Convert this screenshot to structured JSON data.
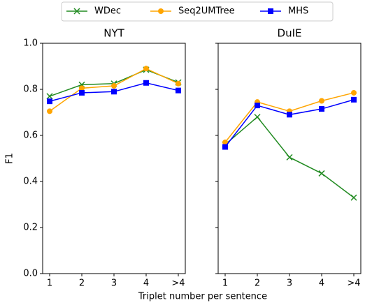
{
  "chart_data": {
    "type": "line",
    "ylabel": "F1",
    "xlabel": "Triplet number per sentence",
    "categories": [
      "1",
      "2",
      "3",
      "4",
      ">4"
    ],
    "ylim": [
      0,
      1
    ],
    "yticks": [
      {
        "value": 0,
        "label": "0.0"
      },
      {
        "value": 0.2,
        "label": "0.2"
      },
      {
        "value": 0.4,
        "label": "0.4"
      },
      {
        "value": 0.6,
        "label": "0.6"
      },
      {
        "value": 0.8,
        "label": "0.8"
      },
      {
        "value": 1,
        "label": "1.0"
      }
    ],
    "series": [
      {
        "name": "WDec",
        "color": "#228b22",
        "marker": "x"
      },
      {
        "name": "Seq2UMTree",
        "color": "#ffa500",
        "marker": "o"
      },
      {
        "name": "MHS",
        "color": "#0000ff",
        "marker": "s"
      }
    ],
    "panels": [
      {
        "title": "NYT",
        "series": [
          {
            "values": [
              0.77,
              0.82,
              0.825,
              0.885,
              0.83
            ]
          },
          {
            "values": [
              0.705,
              0.805,
              0.815,
              0.89,
              0.825
            ]
          },
          {
            "values": [
              0.748,
              0.785,
              0.79,
              0.828,
              0.795
            ]
          }
        ]
      },
      {
        "title": "DuIE",
        "series": [
          {
            "values": [
              0.56,
              0.68,
              0.505,
              0.435,
              0.33
            ]
          },
          {
            "values": [
              0.57,
              0.745,
              0.705,
              0.75,
              0.785
            ]
          },
          {
            "values": [
              0.55,
              0.73,
              0.69,
              0.715,
              0.755
            ]
          }
        ]
      }
    ]
  }
}
